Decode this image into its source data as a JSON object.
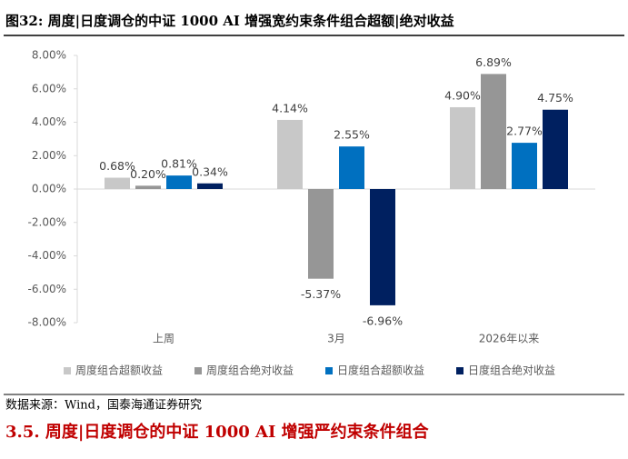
{
  "header": {
    "title": "图32:  周度|日度调仓的中证 1000 AI 增强宽约束条件组合超额|绝对收益"
  },
  "chart_data": {
    "type": "bar",
    "categories": [
      "上周",
      "3月",
      "2026年以来"
    ],
    "series": [
      {
        "name": "周度组合超额收益",
        "color": "#c8c8c8",
        "values": [
          0.68,
          4.14,
          4.9
        ],
        "value_labels": [
          "0.68%",
          "4.14%",
          "4.90%"
        ]
      },
      {
        "name": "周度组合绝对收益",
        "color": "#969696",
        "values": [
          0.2,
          -5.37,
          6.89
        ],
        "value_labels": [
          "0.20%",
          "-5.37%",
          "6.89%"
        ]
      },
      {
        "name": "日度组合超额收益",
        "color": "#0070c0",
        "values": [
          0.81,
          2.55,
          2.77
        ],
        "value_labels": [
          "0.81%",
          "2.55%",
          "2.77%"
        ]
      },
      {
        "name": "日度组合绝对收益",
        "color": "#002060",
        "values": [
          0.34,
          -6.96,
          4.75
        ],
        "value_labels": [
          "0.34%",
          "-6.96%",
          "4.75%"
        ]
      }
    ],
    "ylim": [
      -8,
      8
    ],
    "yticks": [
      {
        "value": -8,
        "label": "-8.00%"
      },
      {
        "value": -6,
        "label": "-6.00%"
      },
      {
        "value": -4,
        "label": "-4.00%"
      },
      {
        "value": -2,
        "label": "-2.00%"
      },
      {
        "value": 0,
        "label": "0.00%"
      },
      {
        "value": 2,
        "label": "2.00%"
      },
      {
        "value": 4,
        "label": "4.00%"
      },
      {
        "value": 6,
        "label": "6.00%"
      },
      {
        "value": 8,
        "label": "8.00%"
      }
    ],
    "legend": "bottom"
  },
  "source": "数据来源：Wind，国泰海通证券研究",
  "section_heading": "3.5.   周度|日度调仓的中证 1000 AI 增强严约束条件组合"
}
